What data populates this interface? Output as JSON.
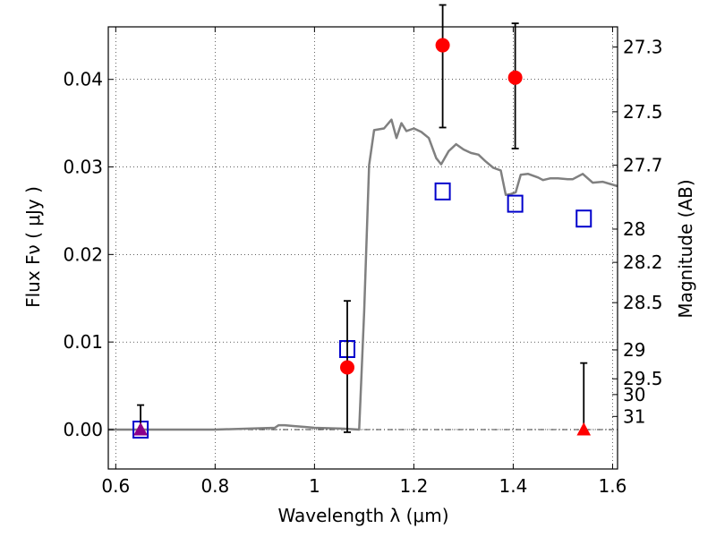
{
  "chart_data": {
    "type": "scatter",
    "xlabel": "Wavelength  λ (μm)",
    "ylabel": "Flux  Fν  ( μJy )",
    "ylabel_right": "Magnitude (AB)",
    "xlim": [
      0.585,
      1.61
    ],
    "ylim": [
      -0.0045,
      0.046
    ],
    "grid": true,
    "x_ticks": [
      0.6,
      0.8,
      1.0,
      1.2,
      1.4,
      1.6
    ],
    "x_tick_labels": [
      "0.6",
      "0.8",
      "1",
      "1.2",
      "1.4",
      "1.6"
    ],
    "y_ticks": [
      0.0,
      0.01,
      0.02,
      0.03,
      0.04
    ],
    "y_tick_labels": [
      "0.00",
      "0.01",
      "0.02",
      "0.03",
      "0.04"
    ],
    "mag_ticks": [
      {
        "label": "27.3",
        "flux": 0.0437
      },
      {
        "label": "27.5",
        "flux": 0.0363
      },
      {
        "label": "27.7",
        "flux": 0.0302
      },
      {
        "label": "28",
        "flux": 0.0229
      },
      {
        "label": "28.2",
        "flux": 0.0191
      },
      {
        "label": "28.5",
        "flux": 0.0145
      },
      {
        "label": "29",
        "flux": 0.0091
      },
      {
        "label": "29.5",
        "flux": 0.0058
      },
      {
        "label": "30",
        "flux": 0.004
      },
      {
        "label": "31",
        "flux": 0.0015
      }
    ],
    "series": [
      {
        "kind": "line",
        "color": "#808080",
        "x": [
          0.585,
          0.65,
          0.8,
          0.92,
          0.928,
          0.94,
          0.96,
          0.98,
          1.0,
          1.06,
          1.09,
          1.1,
          1.11,
          1.12,
          1.14,
          1.155,
          1.165,
          1.175,
          1.185,
          1.2,
          1.215,
          1.23,
          1.245,
          1.255,
          1.27,
          1.285,
          1.3,
          1.315,
          1.33,
          1.345,
          1.36,
          1.375,
          1.385,
          1.395,
          1.405,
          1.415,
          1.43,
          1.45,
          1.46,
          1.475,
          1.49,
          1.51,
          1.52,
          1.54,
          1.56,
          1.58,
          1.61
        ],
        "y": [
          0.0,
          0.0,
          0.0,
          0.0002,
          0.0005,
          0.0005,
          0.0004,
          0.0003,
          0.0002,
          0.0001,
          0.0,
          0.0135,
          0.0302,
          0.0342,
          0.0344,
          0.0354,
          0.0333,
          0.035,
          0.0341,
          0.0344,
          0.034,
          0.0333,
          0.031,
          0.0303,
          0.0318,
          0.0326,
          0.032,
          0.0316,
          0.0314,
          0.0306,
          0.0299,
          0.0296,
          0.0268,
          0.0269,
          0.0271,
          0.0291,
          0.0292,
          0.0288,
          0.0285,
          0.0287,
          0.0287,
          0.0286,
          0.0286,
          0.0292,
          0.0282,
          0.0283,
          0.0278
        ]
      },
      {
        "kind": "points",
        "marker": "square",
        "color": "#0000cc",
        "x": [
          0.65,
          1.066,
          1.258,
          1.404,
          1.542
        ],
        "y": [
          0.0,
          0.0092,
          0.0272,
          0.0258,
          0.0241
        ]
      },
      {
        "kind": "points",
        "marker": "circle",
        "color": "#ff0000",
        "x": [
          1.066,
          1.258,
          1.404
        ],
        "y": [
          0.0071,
          0.0439,
          0.0402
        ],
        "err_low": [
          0.0074,
          0.0094,
          0.0081
        ],
        "err_high": [
          0.0076,
          0.0046,
          0.0062
        ]
      },
      {
        "kind": "points",
        "marker": "triangle",
        "color": "#ff0000",
        "x": [
          0.65,
          1.542
        ],
        "y": [
          0.0,
          0.0
        ],
        "err_low": [
          0.0,
          0.0
        ],
        "err_high": [
          0.0028,
          0.0076
        ]
      },
      {
        "kind": "points",
        "marker": "triangle",
        "color": "#8b008b",
        "x": [
          0.65
        ],
        "y": [
          0.0
        ]
      }
    ]
  }
}
